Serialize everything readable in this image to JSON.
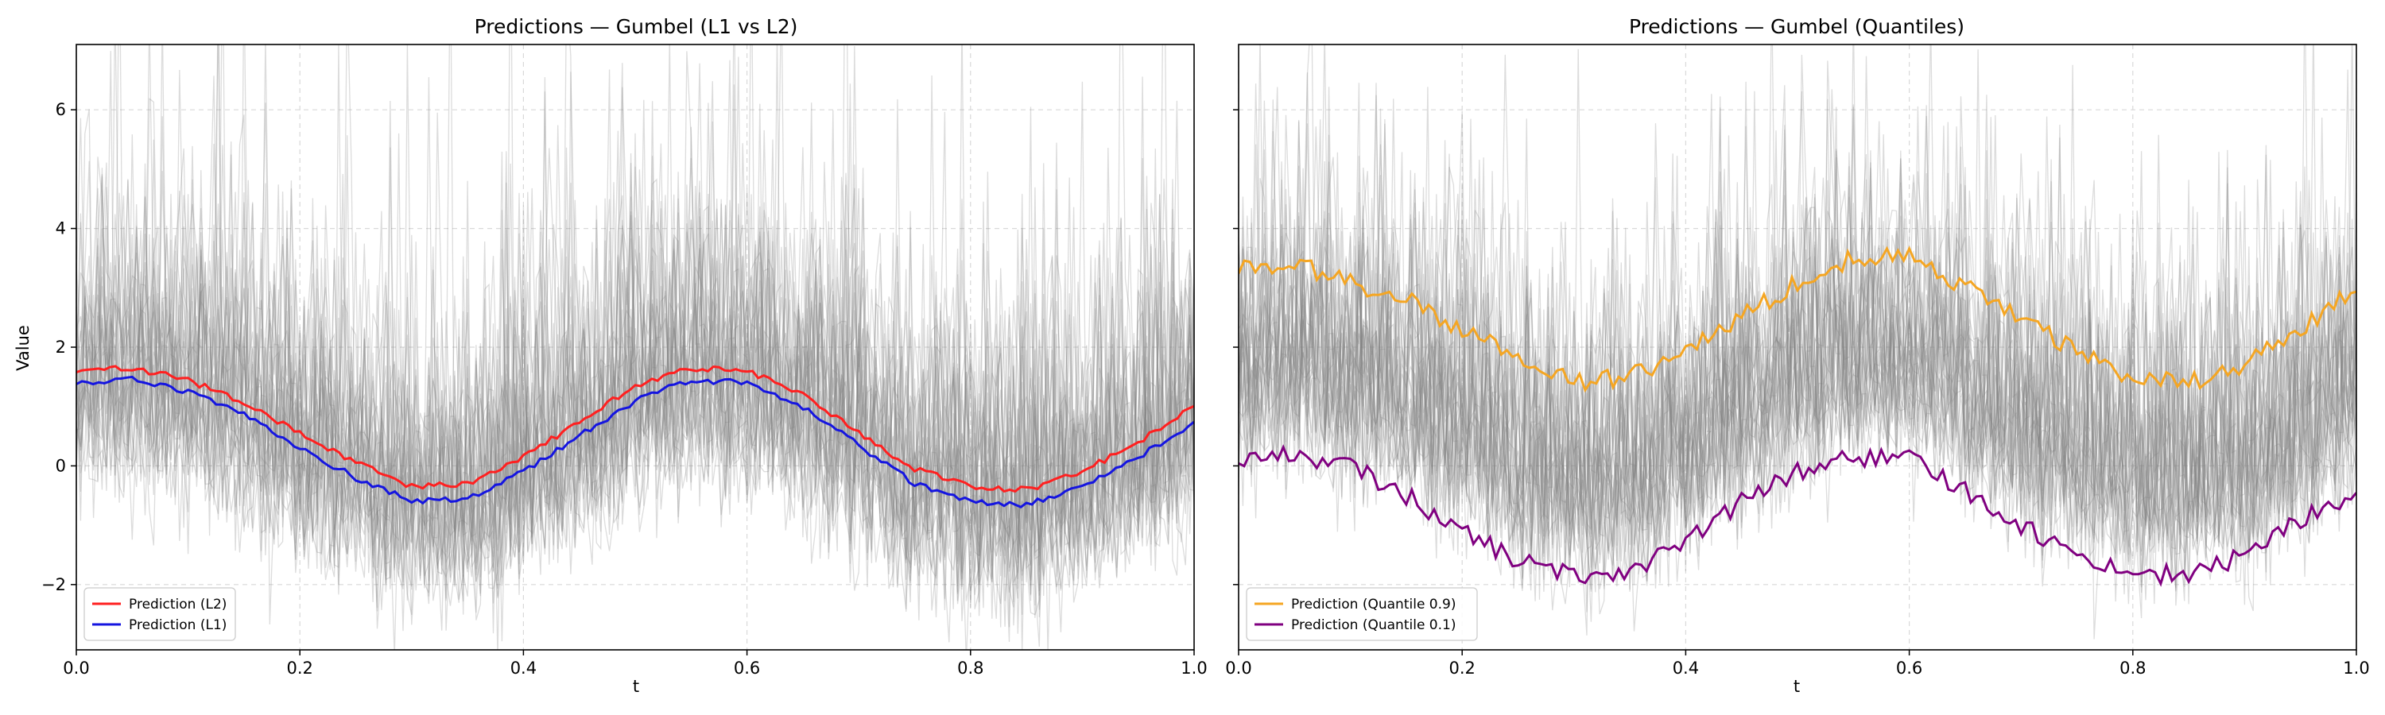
{
  "chart_data": [
    {
      "type": "line",
      "title": "Predictions — Gumbel (L1 vs L2)",
      "xlabel": "t",
      "ylabel": "Value",
      "xlim": [
        0.0,
        1.0
      ],
      "ylim": [
        -3.1,
        7.1
      ],
      "xticks": [
        0.0,
        0.2,
        0.4,
        0.6,
        0.8,
        1.0
      ],
      "xtick_labels": [
        "0.0",
        "0.2",
        "0.4",
        "0.6",
        "0.8",
        "1.0"
      ],
      "yticks": [
        -2,
        0,
        2,
        4,
        6
      ],
      "ytick_labels": [
        "−2",
        "0",
        "2",
        "4",
        "6"
      ],
      "grid": true,
      "legend_position": "lower-left",
      "background_samples": {
        "count": 30,
        "color": "#808080",
        "description_shown": false
      },
      "series": [
        {
          "name": "Prediction (L2)",
          "color": "#ff2020",
          "x": [
            0.0,
            0.05,
            0.1,
            0.15,
            0.2,
            0.25,
            0.3,
            0.35,
            0.4,
            0.45,
            0.5,
            0.55,
            0.6,
            0.65,
            0.7,
            0.75,
            0.8,
            0.85,
            0.9,
            0.95,
            1.0
          ],
          "values": [
            1.6,
            1.65,
            1.45,
            1.05,
            0.55,
            0.05,
            -0.35,
            -0.3,
            0.15,
            0.75,
            1.35,
            1.65,
            1.6,
            1.2,
            0.55,
            -0.05,
            -0.35,
            -0.4,
            -0.1,
            0.4,
            1.0
          ]
        },
        {
          "name": "Prediction (L1)",
          "color": "#1515e0",
          "x": [
            0.0,
            0.05,
            0.1,
            0.15,
            0.2,
            0.25,
            0.3,
            0.35,
            0.4,
            0.45,
            0.5,
            0.55,
            0.6,
            0.65,
            0.7,
            0.75,
            0.8,
            0.85,
            0.9,
            0.95,
            1.0
          ],
          "values": [
            1.4,
            1.45,
            1.25,
            0.85,
            0.3,
            -0.2,
            -0.6,
            -0.55,
            -0.1,
            0.5,
            1.1,
            1.45,
            1.4,
            1.0,
            0.35,
            -0.3,
            -0.6,
            -0.65,
            -0.35,
            0.15,
            0.7
          ]
        }
      ]
    },
    {
      "type": "line",
      "title": "Predictions — Gumbel (Quantiles)",
      "xlabel": "t",
      "xlim": [
        0.0,
        1.0
      ],
      "ylim": [
        -3.1,
        7.1
      ],
      "xticks": [
        0.0,
        0.2,
        0.4,
        0.6,
        0.8,
        1.0
      ],
      "xtick_labels": [
        "0.0",
        "0.2",
        "0.4",
        "0.6",
        "0.8",
        "1.0"
      ],
      "yticks": [
        -2,
        0,
        2,
        4,
        6
      ],
      "shared_y": true,
      "grid": true,
      "legend_position": "lower-left",
      "background_samples": {
        "count": 30,
        "color": "#808080",
        "description_shown": false
      },
      "series": [
        {
          "name": "Prediction (Quantile 0.9)",
          "color": "#f5a623",
          "x": [
            0.0,
            0.05,
            0.1,
            0.15,
            0.2,
            0.25,
            0.3,
            0.35,
            0.4,
            0.45,
            0.5,
            0.55,
            0.6,
            0.65,
            0.7,
            0.75,
            0.8,
            0.85,
            0.9,
            0.95,
            1.0
          ],
          "values": [
            3.3,
            3.4,
            3.1,
            2.8,
            2.3,
            1.8,
            1.4,
            1.5,
            1.9,
            2.5,
            3.1,
            3.5,
            3.6,
            3.0,
            2.5,
            1.9,
            1.5,
            1.4,
            1.7,
            2.3,
            3.0
          ]
        },
        {
          "name": "Prediction (Quantile 0.1)",
          "color": "#800080",
          "x": [
            0.0,
            0.05,
            0.1,
            0.15,
            0.2,
            0.25,
            0.3,
            0.35,
            0.4,
            0.45,
            0.5,
            0.55,
            0.6,
            0.65,
            0.7,
            0.75,
            0.8,
            0.85,
            0.9,
            0.95,
            1.0
          ],
          "values": [
            0.1,
            0.2,
            0.0,
            -0.5,
            -1.1,
            -1.6,
            -1.85,
            -1.75,
            -1.3,
            -0.6,
            -0.1,
            0.15,
            0.1,
            -0.4,
            -1.0,
            -1.5,
            -1.8,
            -1.85,
            -1.5,
            -0.9,
            -0.5
          ]
        }
      ]
    }
  ]
}
